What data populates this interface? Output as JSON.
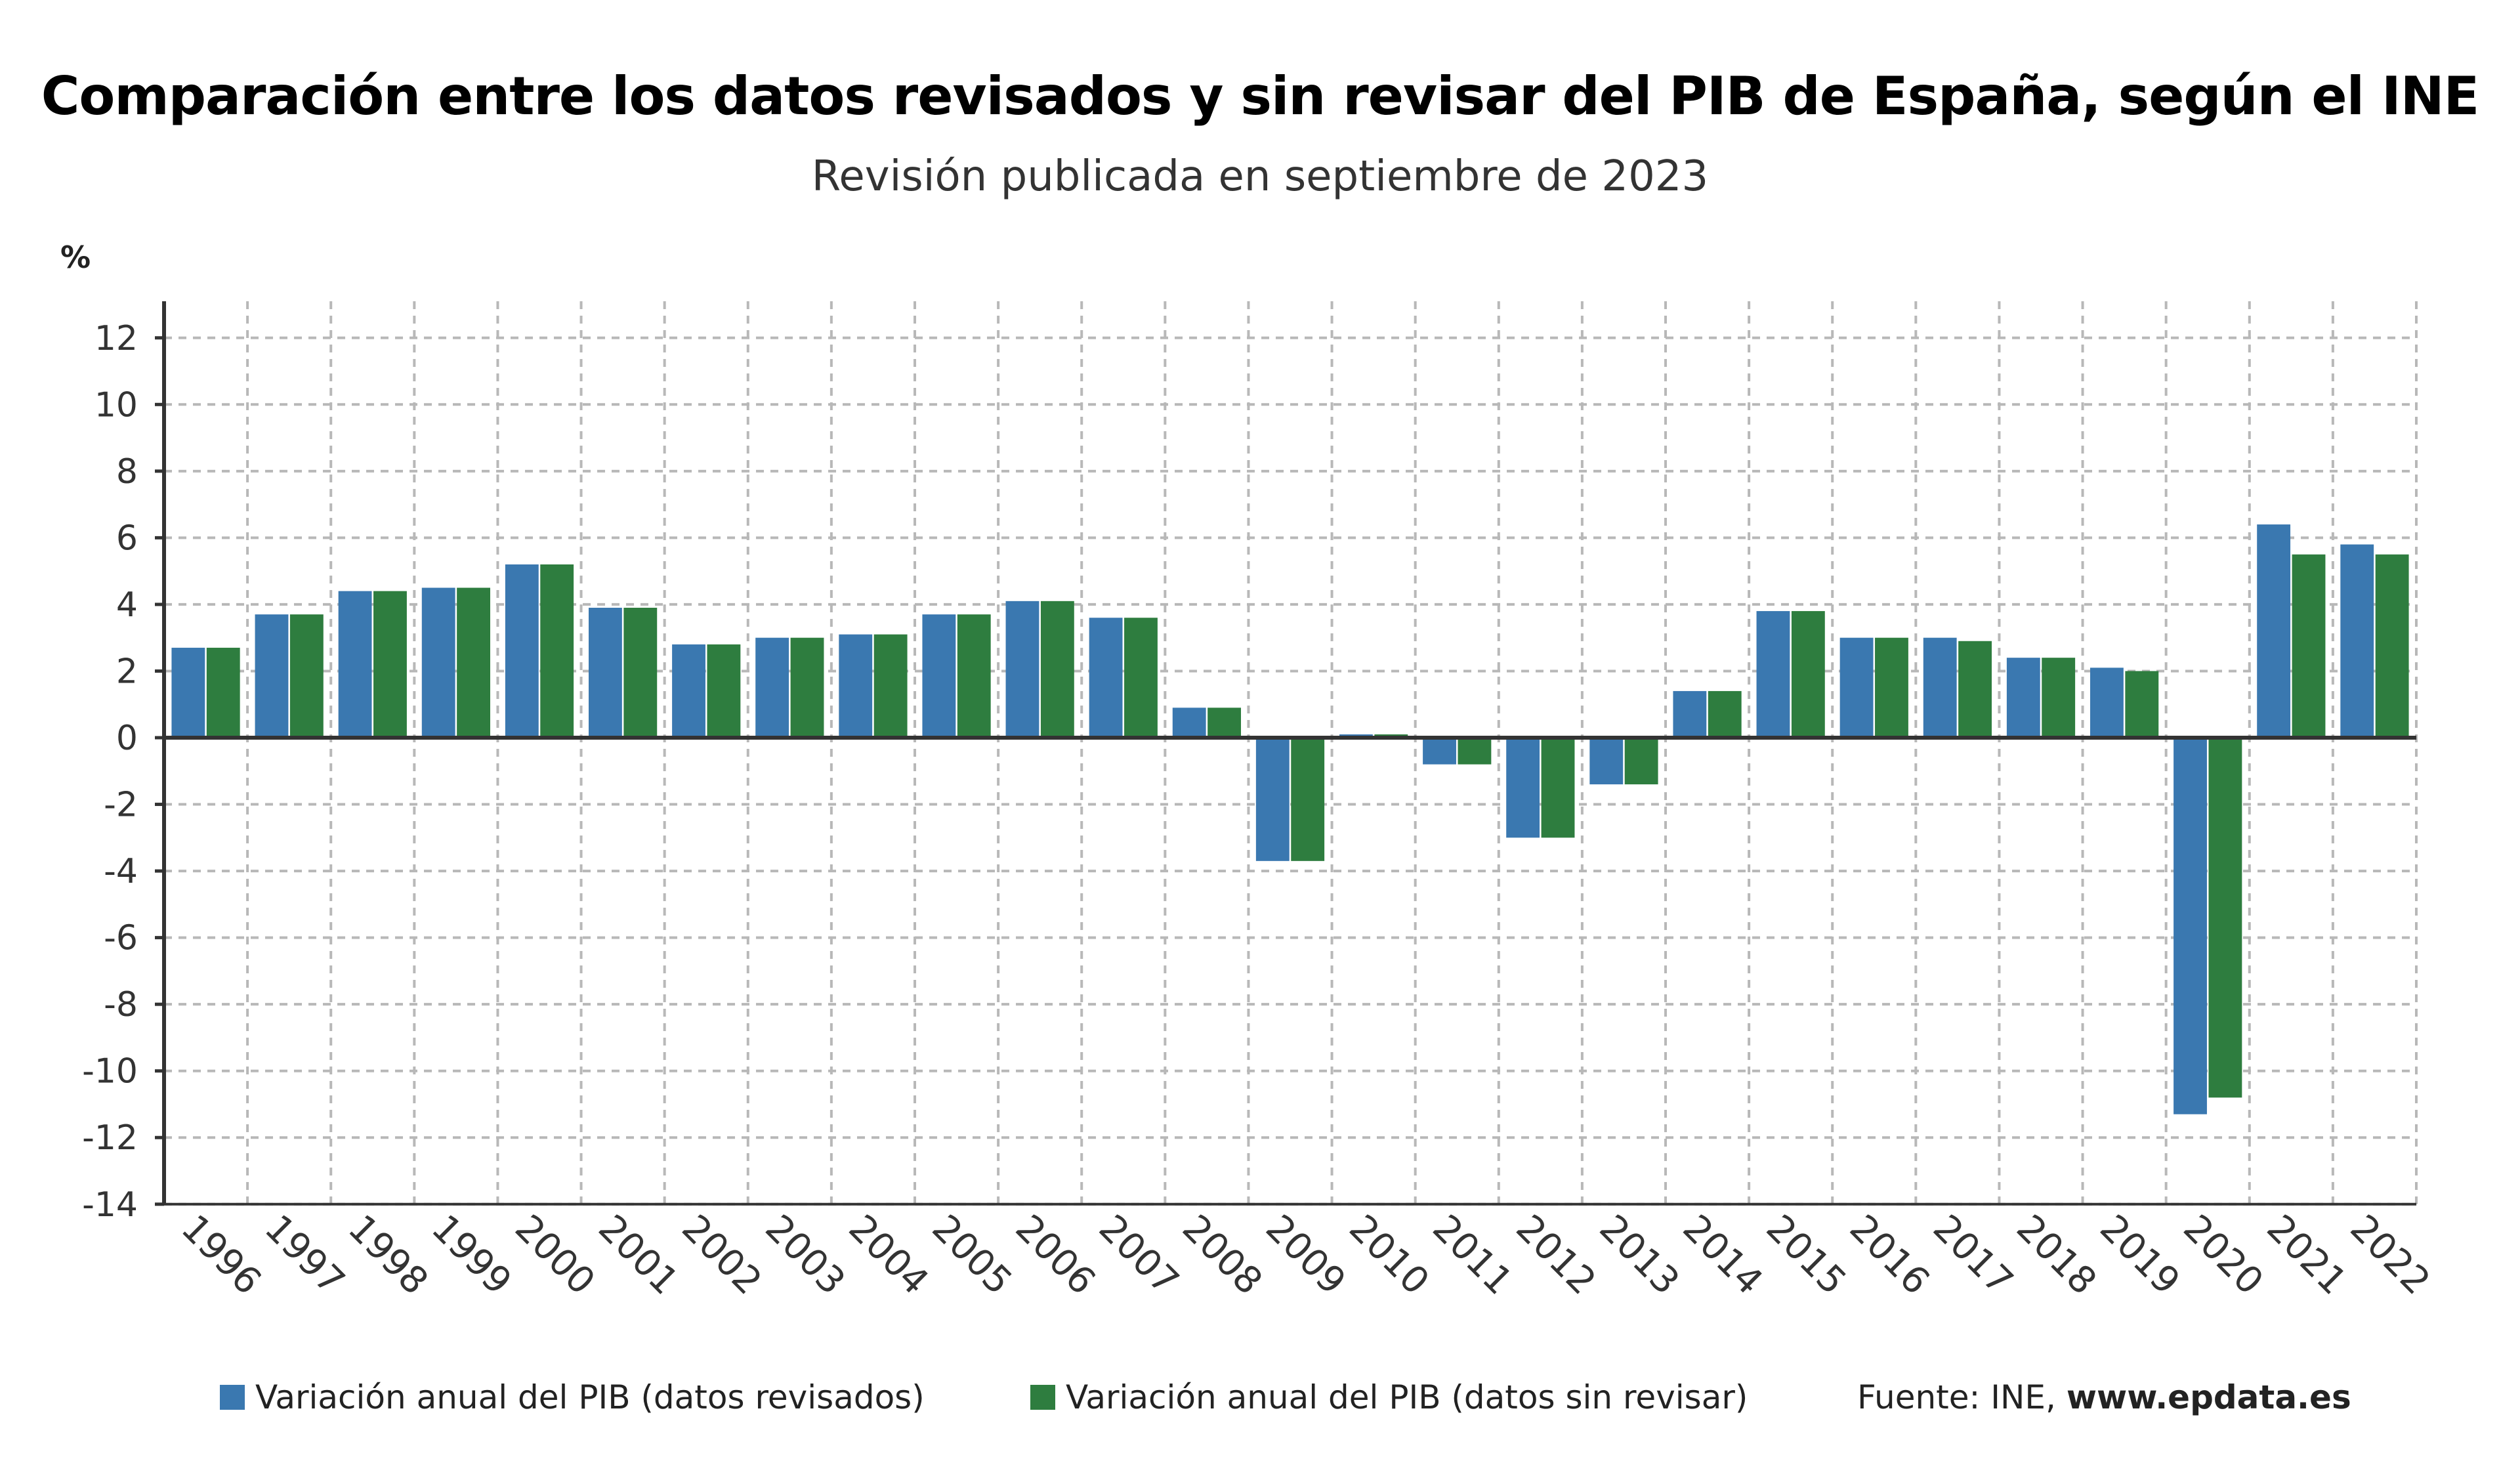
{
  "header": {
    "title": "Comparación entre los datos revisados y sin revisar del PIB de España, según el INE",
    "subtitle": "Revisión publicada en septiembre de 2023"
  },
  "footer": {
    "source_prefix": "Fuente: INE, ",
    "source_site": "www.epdata.es"
  },
  "chart_data": {
    "type": "bar",
    "title": "Comparación entre los datos revisados y sin revisar del PIB de España, según el INE",
    "subtitle": "Revisión publicada en septiembre de 2023",
    "xlabel": "",
    "ylabel": "%",
    "ylim": [
      -14,
      13
    ],
    "yticks": [
      12,
      10,
      8,
      6,
      4,
      2,
      0,
      -2,
      -4,
      -6,
      -8,
      -10,
      -12,
      -14
    ],
    "grid": true,
    "legend_position": "bottom",
    "categories": [
      "1996",
      "1997",
      "1998",
      "1999",
      "2000",
      "2001",
      "2002",
      "2003",
      "2004",
      "2005",
      "2006",
      "2007",
      "2008",
      "2009",
      "2010",
      "2011",
      "2012",
      "2013",
      "2014",
      "2015",
      "2016",
      "2017",
      "2018",
      "2019",
      "2020",
      "2021",
      "2022"
    ],
    "series": [
      {
        "name": "Variación anual del PIB (datos revisados)",
        "color": "#3a78b0",
        "values": [
          2.7,
          3.7,
          4.4,
          4.5,
          5.2,
          3.9,
          2.8,
          3.0,
          3.1,
          3.7,
          4.1,
          3.6,
          0.9,
          -3.7,
          0.1,
          -0.8,
          -3.0,
          -1.4,
          1.4,
          3.8,
          3.0,
          3.0,
          2.4,
          2.1,
          -11.3,
          6.4,
          5.8
        ]
      },
      {
        "name": "Variación anual del PIB (datos sin revisar)",
        "color": "#2e7d3f",
        "values": [
          2.7,
          3.7,
          4.4,
          4.5,
          5.2,
          3.9,
          2.8,
          3.0,
          3.1,
          3.7,
          4.1,
          3.6,
          0.9,
          -3.7,
          0.1,
          -0.8,
          -3.0,
          -1.4,
          1.4,
          3.8,
          3.0,
          2.9,
          2.4,
          2.0,
          -10.8,
          5.5,
          5.5
        ]
      }
    ]
  }
}
